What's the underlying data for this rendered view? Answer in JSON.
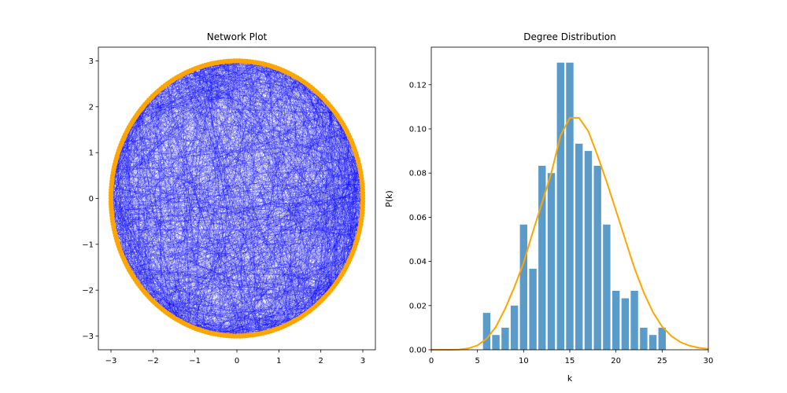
{
  "chart_data": [
    {
      "type": "network",
      "title": "Network Plot",
      "xlim": [
        -3.3,
        3.3
      ],
      "ylim": [
        -3.3,
        3.3
      ],
      "xticks": [
        -3,
        -2,
        -1,
        0,
        1,
        2,
        3
      ],
      "yticks": [
        -3,
        -2,
        -1,
        0,
        1,
        2,
        3
      ],
      "tick_labels_x": [
        "−3",
        "−2",
        "−1",
        "0",
        "1",
        "2",
        "3"
      ],
      "tick_labels_y": [
        "−3",
        "−2",
        "−1",
        "0",
        "1",
        "2",
        "3"
      ],
      "layout": "circular",
      "radius": 3,
      "node_count": 300,
      "node_color": "#ffa500",
      "edge_color": "#0000ff",
      "grid": false
    },
    {
      "type": "bar",
      "title": "Degree Distribution",
      "xlabel": "k",
      "ylabel": "P(k)",
      "xlim": [
        0,
        30
      ],
      "ylim": [
        0,
        0.137
      ],
      "xticks": [
        0,
        5,
        10,
        15,
        20,
        25,
        30
      ],
      "tick_labels_x": [
        "0",
        "5",
        "10",
        "15",
        "20",
        "25",
        "30"
      ],
      "yticks": [
        0.0,
        0.02,
        0.04,
        0.06,
        0.08,
        0.1,
        0.12
      ],
      "tick_labels_y": [
        "0.00",
        "0.02",
        "0.04",
        "0.06",
        "0.08",
        "0.10",
        "0.12"
      ],
      "bar_color": "#5b9bc9",
      "bars": {
        "k": [
          6,
          7,
          8,
          9,
          10,
          11,
          12,
          13,
          14,
          15,
          16,
          17,
          18,
          19,
          20,
          21,
          22,
          23,
          24,
          25
        ],
        "values": [
          0.0167,
          0.0067,
          0.01,
          0.02,
          0.0567,
          0.0367,
          0.0833,
          0.08,
          0.13,
          0.13,
          0.0933,
          0.09,
          0.0833,
          0.0567,
          0.0267,
          0.0233,
          0.0267,
          0.01,
          0.0067,
          0.01
        ]
      },
      "fit_line": {
        "color": "#ffa500",
        "x": [
          0,
          1,
          2,
          3,
          4,
          5,
          6,
          7,
          8,
          9,
          10,
          11,
          12,
          13,
          14,
          15,
          16,
          17,
          18,
          19,
          20,
          21,
          22,
          23,
          24,
          25,
          26,
          27,
          28,
          29,
          30
        ],
        "y": [
          0.0,
          0.0,
          0.0,
          0.0001,
          0.0006,
          0.002,
          0.005,
          0.0104,
          0.0186,
          0.0284,
          0.0394,
          0.0534,
          0.0666,
          0.08,
          0.097,
          0.105,
          0.105,
          0.099,
          0.088,
          0.076,
          0.063,
          0.05,
          0.037,
          0.026,
          0.017,
          0.0105,
          0.0062,
          0.0034,
          0.0018,
          0.0009,
          0.0004
        ]
      }
    }
  ]
}
